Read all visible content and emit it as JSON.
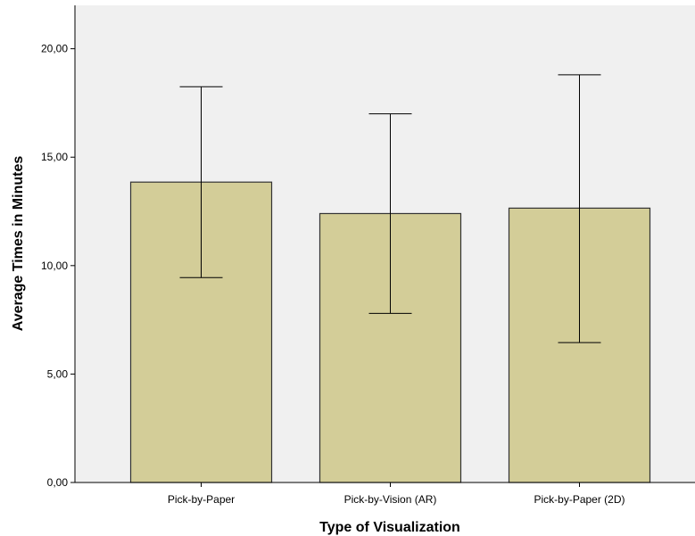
{
  "chart_data": {
    "type": "bar",
    "title": "",
    "xlabel": "Type of Visualization",
    "ylabel": "Average Times in Minutes",
    "categories": [
      "Pick-by-Paper",
      "Pick-by-Vision (AR)",
      "Pick-by-Paper (2D)"
    ],
    "values": [
      13.85,
      12.4,
      12.65
    ],
    "error_low": [
      9.45,
      7.8,
      6.45
    ],
    "error_high": [
      18.25,
      17.0,
      18.8
    ],
    "ylim": [
      0,
      22
    ],
    "yticks": [
      0,
      5,
      10,
      15,
      20
    ],
    "ytick_labels": [
      "0,00",
      "5,00",
      "10,00",
      "15,00",
      "20,00"
    ],
    "grid": false,
    "legend": "none",
    "colors": {
      "bar_fill": "#d3cd98",
      "bar_stroke": "#333333",
      "plot_background": "#f0f0f0",
      "error_bar": "#000000"
    }
  }
}
